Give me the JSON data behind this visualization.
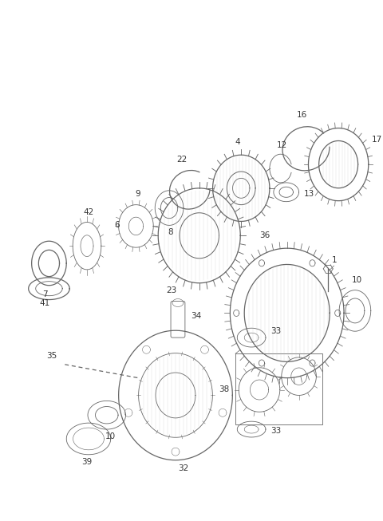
{
  "bg_color": "#ffffff",
  "line_color": "#666666",
  "label_color": "#333333",
  "fig_w": 4.8,
  "fig_h": 6.53,
  "dpi": 100
}
